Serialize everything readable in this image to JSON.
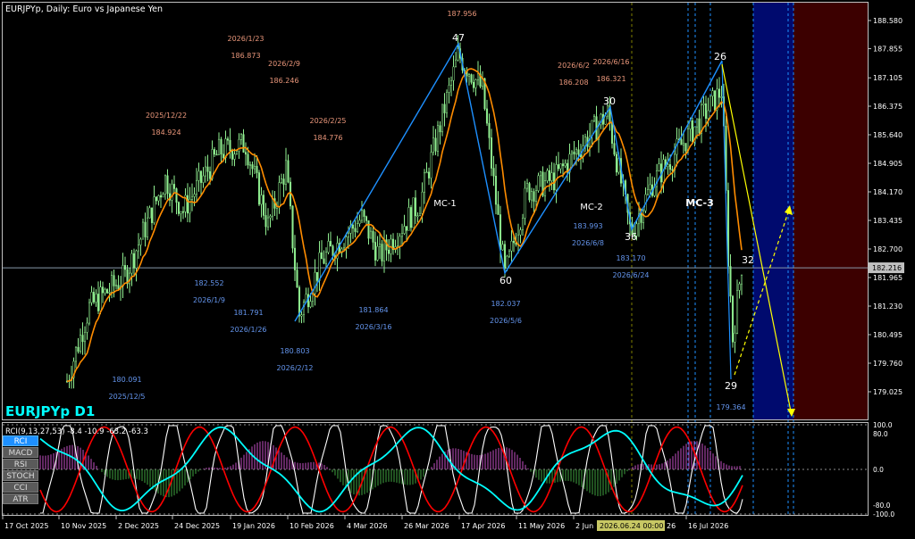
{
  "chart_title": "EURJPYp, Daily:  Euro vs Japanese Yen",
  "symbol_label": "EURJPYp D1",
  "indicator_header": "RCI(9,13,27,53) -8.4 -10.9 -63.2 -63.3",
  "indicator_buttons": [
    "RCI",
    "MACD",
    "RSI",
    "STOCH",
    "CCI",
    "ATR"
  ],
  "active_indicator": "RCI",
  "current_price": "182.216",
  "price_axis": [
    "188.580",
    "187.855",
    "187.105",
    "186.375",
    "185.640",
    "184.905",
    "184.170",
    "183.435",
    "182.700",
    "181.965",
    "181.230",
    "180.495",
    "179.760",
    "179.025"
  ],
  "price_axis_values": [
    188.58,
    187.855,
    187.105,
    186.375,
    185.64,
    184.905,
    184.17,
    183.435,
    182.7,
    181.965,
    181.23,
    180.495,
    179.76,
    179.025
  ],
  "osc_axis": [
    "100.0",
    "80.0",
    "0.0",
    "-80.0",
    "-100.0"
  ],
  "osc_axis_values": [
    100,
    80,
    0,
    -80,
    -100
  ],
  "date_axis": [
    "17 Oct 2025",
    "10 Nov 2025",
    "2 Dec 2025",
    "24 Dec 2025",
    "19 Jan 2026",
    "10 Feb 2026",
    "4 Mar 2026",
    "26 Mar 2026",
    "17 Apr 2026",
    "11 May 2026",
    "2 Jun",
    "16 Jul 2026"
  ],
  "date_axis_highlight": "2026.06.24 00:00",
  "date_axis_tail": "26",
  "wave_labels": [
    "47",
    "60",
    "30",
    "36",
    "26",
    "29",
    "32"
  ],
  "mc_labels": [
    "MC-1",
    "MC-2",
    "MC-3"
  ],
  "high_annotations": [
    {
      "price": "187.956"
    },
    {
      "date": "2026/1/23",
      "price": "186.873"
    },
    {
      "date": "2026/2/9",
      "price": "186.246"
    },
    {
      "date": "2025/12/22",
      "price": "184.924"
    },
    {
      "date": "2026/2/25",
      "price": "184.776"
    },
    {
      "date": "2026/6/2",
      "price": "186.208"
    },
    {
      "date": "2026/6/16",
      "price": "186.321"
    }
  ],
  "low_annotations": [
    {
      "price": "182.552",
      "date": "2026/1/9"
    },
    {
      "price": "181.791",
      "date": "2026/1/26"
    },
    {
      "price": "180.803",
      "date": "2026/2/12"
    },
    {
      "price": "181.864",
      "date": "2026/3/16"
    },
    {
      "price": "180.091",
      "date": "2025/12/5"
    },
    {
      "price": "182.037",
      "date": "2026/5/6"
    },
    {
      "price": "183.993",
      "date": "2026/6/8"
    },
    {
      "price": "183.170",
      "date": "2026/6/24"
    },
    {
      "price": "179.364"
    }
  ],
  "colors": {
    "background": "#000000",
    "candle": "#90ee90",
    "ma_line": "#ff8c00",
    "zigzag": "#1e90ff",
    "projection": "#ffff00",
    "high_label": "#e9967a",
    "low_label": "#6495ed",
    "rci_fast": "#ffffff",
    "rci_mid": "#ff0000",
    "rci_slow": "#00ffff",
    "zone_blue": "#000a6e",
    "zone_red": "#3c0000",
    "symbol_label": "#00ffff"
  }
}
